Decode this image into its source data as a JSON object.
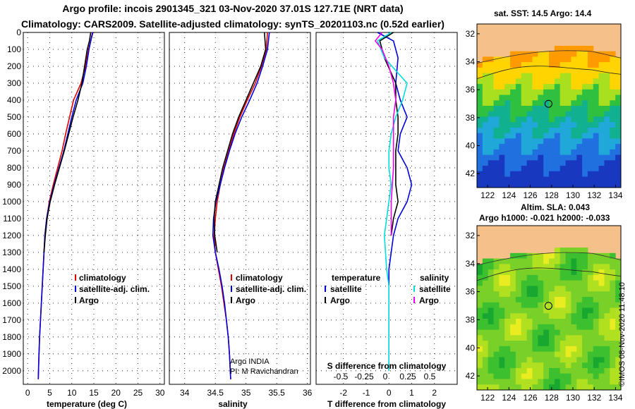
{
  "title_line1": "Argo profile: incois 2901345_321 03-Nov-2020 37.01S 127.71E (NRT data)",
  "title_line2": "Climatology: CARS2009. Satellite-adjusted climatology: synTS_20201103.nc (0.52d earlier)",
  "map_top_title": "sat. SST: 14.5 Argo: 14.4",
  "map_bottom_title1": "Altim. SLA: 0.043",
  "map_bottom_title2": "Argo h1000: -0.021 h2000: -0.033",
  "credit_line1": "Argo INDIA",
  "credit_line2": "PI: M Ravichandran",
  "stamp": "©IMOS 08-Nov-2020 11:48:10",
  "colors": {
    "climatology": "#dd0000",
    "satellite": "#0000dd",
    "argo": "#000000",
    "sal_satellite": "#00dddd",
    "sal_argo": "#ee00ee",
    "land": "#f5c08a"
  },
  "chart_data": [
    {
      "type": "line",
      "xlabel": "temperature (deg C)",
      "ylabel": "",
      "xlim": [
        -1,
        31
      ],
      "ylim": [
        2080,
        0
      ],
      "x_ticks": [
        "0",
        "5",
        "10",
        "15",
        "20",
        "25",
        "30"
      ],
      "y_ticks": [
        "0",
        "100",
        "200",
        "300",
        "400",
        "500",
        "600",
        "700",
        "800",
        "900",
        "1000",
        "1100",
        "1200",
        "1300",
        "1400",
        "1500",
        "1600",
        "1700",
        "1800",
        "1900",
        "2000"
      ],
      "legend": [
        "climatology",
        "satellite-adj. clim.",
        "Argo"
      ],
      "series": [
        {
          "name": "climatology",
          "color": "#dd0000",
          "x": [
            14.8,
            14.3,
            13.8,
            13.1,
            12.1,
            10.4,
            9.5,
            8.6,
            7.8,
            6.8,
            5.8,
            4.9,
            4.3,
            3.9,
            3.7,
            3.5,
            3.3,
            3.1,
            2.9,
            2.7,
            2.5,
            2.4
          ],
          "y": [
            0,
            50,
            100,
            200,
            300,
            400,
            500,
            600,
            700,
            800,
            900,
            1000,
            1100,
            1200,
            1300,
            1400,
            1500,
            1600,
            1700,
            1800,
            1950,
            2050
          ]
        },
        {
          "name": "satellite-adj. clim.",
          "color": "#0000dd",
          "x": [
            14.7,
            14.3,
            13.9,
            13.3,
            12.5,
            11.0,
            10.0,
            9.1,
            8.2,
            7.1,
            6.0,
            5.0,
            4.3,
            3.9,
            3.7,
            3.5,
            3.3,
            3.1,
            2.9,
            2.7,
            2.5,
            2.4
          ],
          "y": [
            0,
            50,
            100,
            200,
            300,
            400,
            500,
            600,
            700,
            800,
            900,
            1000,
            1100,
            1200,
            1300,
            1400,
            1500,
            1600,
            1700,
            1800,
            1950,
            2050
          ]
        },
        {
          "name": "Argo",
          "color": "#000000",
          "x": [
            14.3,
            14.0,
            13.5,
            12.9,
            12.3,
            11.4,
            10.3,
            9.3,
            8.3,
            7.2,
            6.1,
            5.1,
            4.4,
            4.0,
            3.7
          ],
          "y": [
            0,
            50,
            100,
            200,
            300,
            400,
            500,
            600,
            700,
            800,
            900,
            1000,
            1100,
            1200,
            1300
          ]
        }
      ]
    },
    {
      "type": "line",
      "xlabel": "salinity",
      "ylabel": "",
      "xlim": [
        33.75,
        36.05
      ],
      "ylim": [
        2080,
        0
      ],
      "x_ticks": [
        "34",
        "34.5",
        "35",
        "35.5",
        "36"
      ],
      "legend": [
        "climatology",
        "satellite-adj. clim.",
        "Argo"
      ],
      "series": [
        {
          "name": "climatology",
          "color": "#dd0000",
          "x": [
            35.35,
            35.33,
            35.25,
            35.15,
            35.02,
            34.9,
            34.8,
            34.72,
            34.64,
            34.58,
            34.53,
            34.5,
            34.48,
            34.5,
            34.55,
            34.6,
            34.64,
            34.68,
            34.71,
            34.73,
            34.75
          ],
          "y": [
            0,
            100,
            200,
            300,
            400,
            500,
            600,
            700,
            800,
            900,
            1000,
            1100,
            1200,
            1300,
            1400,
            1500,
            1600,
            1700,
            1800,
            1900,
            2050
          ]
        },
        {
          "name": "satellite-adj. clim.",
          "color": "#0000dd",
          "x": [
            35.38,
            35.35,
            35.27,
            35.18,
            35.06,
            34.93,
            34.82,
            34.73,
            34.65,
            34.58,
            34.51,
            34.47,
            34.46,
            34.5,
            34.56,
            34.61,
            34.65,
            34.68,
            34.71,
            34.73,
            34.75
          ],
          "y": [
            0,
            100,
            200,
            300,
            400,
            500,
            600,
            700,
            800,
            900,
            1000,
            1100,
            1200,
            1300,
            1400,
            1500,
            1600,
            1700,
            1800,
            1900,
            2050
          ]
        },
        {
          "name": "Argo",
          "color": "#000000",
          "x": [
            35.3,
            35.32,
            35.24,
            35.12,
            35.0,
            34.88,
            34.78,
            34.7,
            34.62,
            34.56,
            34.5,
            34.48,
            34.49,
            34.53
          ],
          "y": [
            0,
            100,
            200,
            300,
            400,
            500,
            600,
            700,
            800,
            900,
            1000,
            1100,
            1200,
            1300
          ]
        }
      ]
    },
    {
      "type": "line",
      "xlabel": "T difference from climatology",
      "secondary_xlabel": "S difference from climatology",
      "ylabel": "",
      "xlim": [
        -3.2,
        3.0
      ],
      "ylim": [
        2080,
        0
      ],
      "x_ticks": [
        "-2",
        "-1",
        "0",
        "1",
        "2"
      ],
      "secondary_x_ticks": [
        "-0.5",
        "-0.25",
        "0",
        "0.25",
        "0.5"
      ],
      "legend_temperature_header": "temperature",
      "legend_salinity_header": "salinity",
      "legend_temperature": [
        "satellite",
        "Argo"
      ],
      "legend_salinity": [
        "satellite",
        "Argo"
      ],
      "series": [
        {
          "name": "satellite",
          "group": "temperature",
          "color": "#0000dd",
          "x": [
            -0.5,
            0.2,
            0.4,
            0.3,
            0.5,
            0.8,
            0.5,
            0.4,
            0.8,
            1.0,
            0.8,
            0.4,
            0.2,
            0.1,
            0.0,
            0.0,
            0.0,
            0.0,
            0.0,
            0.0
          ],
          "y": [
            0,
            50,
            150,
            300,
            400,
            500,
            600,
            700,
            800,
            900,
            1000,
            1100,
            1200,
            1300,
            1400,
            1500,
            1600,
            1700,
            1800,
            2000
          ]
        },
        {
          "name": "Argo",
          "group": "temperature",
          "color": "#000000",
          "x": [
            0.2,
            -0.4,
            -0.2,
            0.3,
            0.3,
            0.4,
            0.4,
            0.3,
            0.3,
            0.3,
            0.4,
            0.2,
            0.1
          ],
          "y": [
            0,
            50,
            150,
            300,
            400,
            500,
            600,
            700,
            800,
            900,
            1000,
            1100,
            1200
          ]
        },
        {
          "name": "satellite",
          "group": "salinity",
          "color": "#00dddd",
          "x": [
            0.1,
            -0.5,
            -0.2,
            0.8,
            0.6,
            0.3,
            0.1,
            0.0,
            0.0,
            0.1,
            0.0,
            -0.1,
            -0.2,
            -0.1,
            0.0,
            0.0,
            0.0,
            0.0
          ],
          "y": [
            0,
            50,
            150,
            300,
            400,
            500,
            600,
            700,
            800,
            900,
            1000,
            1100,
            1200,
            1400,
            1500,
            1600,
            1800,
            2000
          ]
        },
        {
          "name": "Argo",
          "group": "salinity",
          "color": "#ee00ee",
          "x": [
            -0.3,
            -0.6,
            -0.3,
            0.0,
            0.2,
            0.3,
            0.2,
            0.2,
            0.2,
            0.1,
            0.1
          ],
          "y": [
            0,
            50,
            100,
            200,
            300,
            400,
            500,
            600,
            800,
            1000,
            1200
          ]
        }
      ]
    },
    {
      "type": "heatmap",
      "title": "sat. SST: 14.5 Argo: 14.4",
      "xlim": [
        121,
        134.5
      ],
      "ylim": [
        -43,
        -31.3
      ],
      "x_ticks": [
        "122",
        "124",
        "126",
        "128",
        "130",
        "132",
        "134"
      ],
      "y_ticks": [
        "-32",
        "-34",
        "-36",
        "-38",
        "-40",
        "-42"
      ],
      "marker": {
        "lon": 127.71,
        "lat": -37.01
      }
    },
    {
      "type": "heatmap",
      "title": "Argo h1000: -0.021 h2000: -0.033",
      "xlim": [
        121,
        134.5
      ],
      "ylim": [
        -43,
        -31.3
      ],
      "x_ticks": [
        "122",
        "124",
        "126",
        "128",
        "130",
        "132",
        "134"
      ],
      "y_ticks": [
        "-32",
        "-34",
        "-36",
        "-38",
        "-40",
        "-42"
      ],
      "marker": {
        "lon": 127.71,
        "lat": -37.01
      }
    }
  ]
}
